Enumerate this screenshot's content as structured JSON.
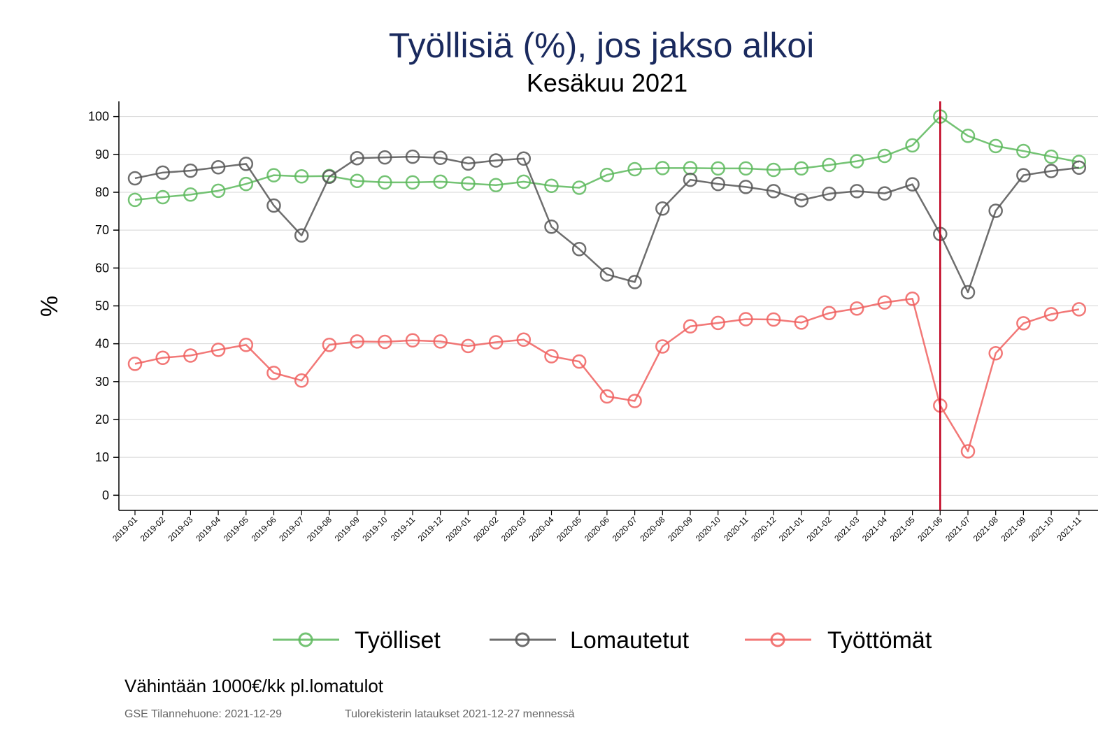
{
  "chart_data": {
    "type": "line",
    "title": "Työllisiä (%), jos jakso alkoi",
    "subtitle": "Kesäkuu 2021",
    "ylabel": "%",
    "xlabel": "",
    "ylim": [
      -4,
      104
    ],
    "yticks": [
      0,
      10,
      20,
      30,
      40,
      50,
      60,
      70,
      80,
      90,
      100
    ],
    "grid": true,
    "reference_line": {
      "x": "2021-06",
      "color": "#c0001e"
    },
    "categories": [
      "2019-01",
      "2019-02",
      "2019-03",
      "2019-04",
      "2019-05",
      "2019-06",
      "2019-07",
      "2019-08",
      "2019-09",
      "2019-10",
      "2019-11",
      "2019-12",
      "2020-01",
      "2020-02",
      "2020-03",
      "2020-04",
      "2020-05",
      "2020-06",
      "2020-07",
      "2020-08",
      "2020-09",
      "2020-10",
      "2020-11",
      "2020-12",
      "2021-01",
      "2021-02",
      "2021-03",
      "2021-04",
      "2021-05",
      "2021-06",
      "2021-07",
      "2021-08",
      "2021-09",
      "2021-10",
      "2021-11"
    ],
    "series": [
      {
        "name": "Työlliset",
        "color": "#5cb85c",
        "values": [
          78,
          78.7,
          79.4,
          80.4,
          82.2,
          84.5,
          84.2,
          84.3,
          83,
          82.6,
          82.6,
          82.8,
          82.3,
          81.9,
          82.8,
          81.7,
          81.2,
          84.6,
          86.1,
          86.4,
          86.4,
          86.3,
          86.3,
          85.9,
          86.3,
          87.2,
          88.2,
          89.6,
          92.4,
          100,
          94.9,
          92.2,
          90.9,
          89.4,
          88
        ]
      },
      {
        "name": "Lomautetut",
        "color": "#555555",
        "values": [
          83.7,
          85.2,
          85.7,
          86.6,
          87.5,
          76.5,
          68.6,
          84.1,
          89,
          89.2,
          89.4,
          89.1,
          87.6,
          88.4,
          88.9,
          70.9,
          65,
          58.3,
          56.3,
          75.7,
          83.3,
          82.2,
          81.4,
          80.3,
          77.9,
          79.6,
          80.3,
          79.7,
          82.1,
          69,
          53.6,
          75.1,
          84.5,
          85.6,
          86.5
        ]
      },
      {
        "name": "Työttömät",
        "color": "#f0605f",
        "values": [
          34.7,
          36.3,
          36.9,
          38.4,
          39.7,
          32.3,
          30.3,
          39.7,
          40.6,
          40.5,
          40.9,
          40.6,
          39.4,
          40.4,
          41.1,
          36.7,
          35.3,
          26.1,
          24.9,
          39.3,
          44.6,
          45.5,
          46.5,
          46.4,
          45.6,
          48.1,
          49.3,
          50.9,
          51.9,
          23.7,
          11.6,
          37.5,
          45.4,
          47.8,
          49.1
        ]
      }
    ]
  },
  "legend": [
    {
      "label": "Työlliset",
      "color": "#5cb85c"
    },
    {
      "label": "Lomautetut",
      "color": "#555555"
    },
    {
      "label": "Työttömät",
      "color": "#f0605f"
    }
  ],
  "footnote": "Vähintään 1000€/kk pl.lomatulot",
  "source_left": "GSE Tilannehuone: 2021-12-29",
  "source_right": "Tulorekisterin lataukset 2021-12-27 mennessä"
}
